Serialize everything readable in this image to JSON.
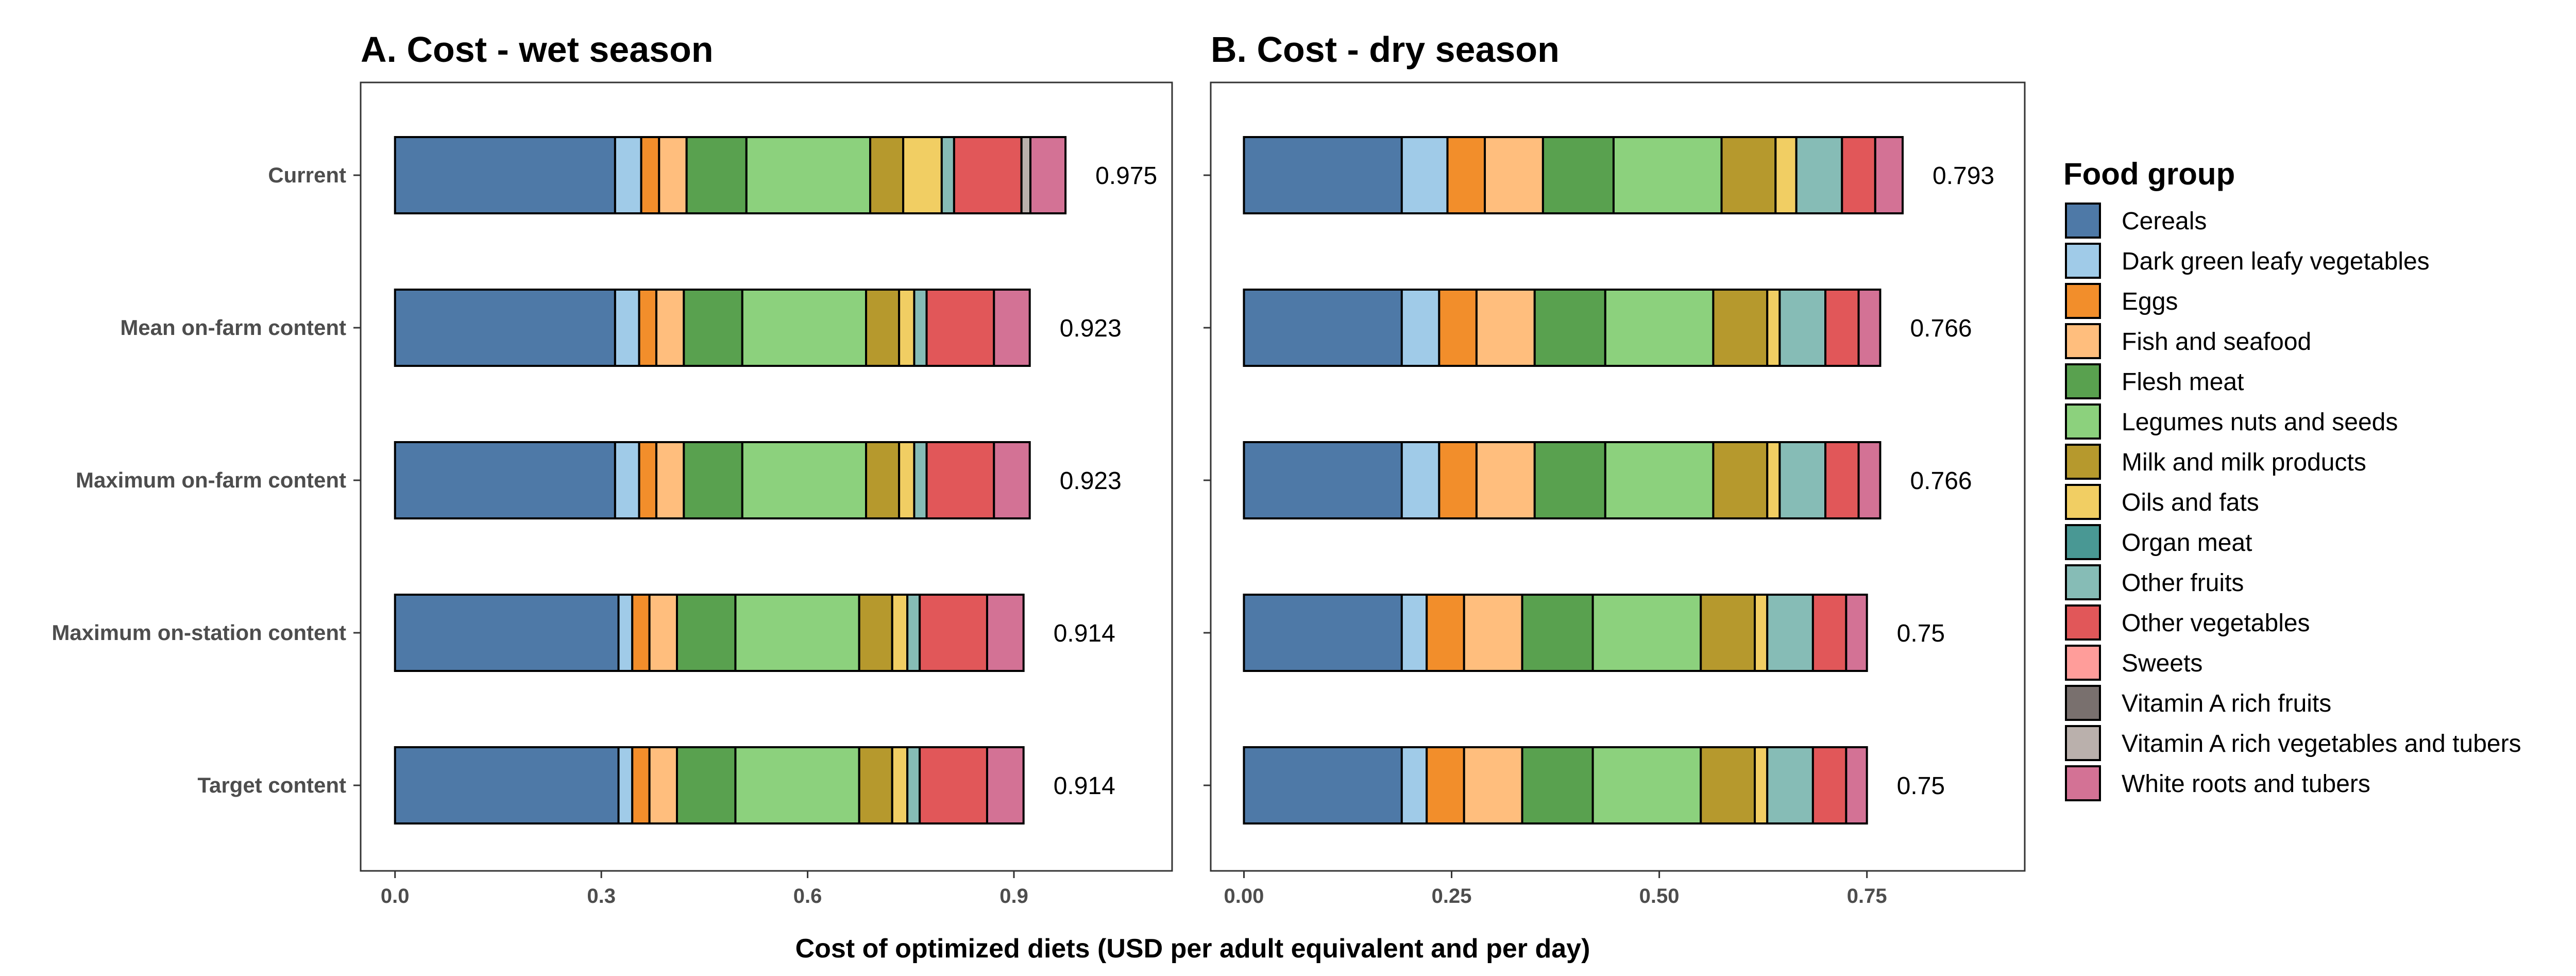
{
  "chart_data": {
    "type": "bar",
    "orientation": "horizontal",
    "stacked": true,
    "xlabel": "Cost of optimized diets (USD per adult equivalent and per day)",
    "legend": {
      "title": "Food group",
      "placement": "right",
      "items": [
        {
          "name": "Cereals",
          "color": "#4e79a7"
        },
        {
          "name": "Dark green leafy vegetables",
          "color": "#a0cbe8"
        },
        {
          "name": "Eggs",
          "color": "#f28e2b"
        },
        {
          "name": "Fish and seafood",
          "color": "#ffbe7d"
        },
        {
          "name": "Flesh meat",
          "color": "#59a14f"
        },
        {
          "name": "Legumes nuts and seeds",
          "color": "#8cd17d"
        },
        {
          "name": "Milk and milk products",
          "color": "#b6992d"
        },
        {
          "name": "Oils and fats",
          "color": "#f1ce63"
        },
        {
          "name": "Organ meat",
          "color": "#499894"
        },
        {
          "name": "Other fruits",
          "color": "#86bcb6"
        },
        {
          "name": "Other vegetables",
          "color": "#e15759"
        },
        {
          "name": "Sweets",
          "color": "#ff9d9a"
        },
        {
          "name": "Vitamin A rich fruits",
          "color": "#79706e"
        },
        {
          "name": "Vitamin A rich vegetables and tubers",
          "color": "#bab0ac"
        },
        {
          "name": "White roots and tubers",
          "color": "#d37295"
        }
      ]
    },
    "categories": [
      "Current",
      "Mean on-farm content",
      "Maximum on-farm content",
      "Maximum on-station content",
      "Target content"
    ],
    "panels": [
      {
        "title": "A. Cost - wet season",
        "xlim": [
          -0.05,
          1.13
        ],
        "ticks": [
          0.0,
          0.3,
          0.6,
          0.9
        ],
        "tick_labels": [
          "0.0",
          "0.3",
          "0.6",
          "0.9"
        ],
        "totals": [
          0.975,
          0.923,
          0.923,
          0.914,
          0.914
        ],
        "total_labels": [
          "0.975",
          "0.923",
          "0.923",
          "0.914",
          "0.914"
        ],
        "segments": [
          [
            0.32,
            0.038,
            0.026,
            0.04,
            0.087,
            0.18,
            0.048,
            0.056,
            0.0,
            0.018,
            0.098,
            0.0,
            0.0,
            0.013,
            0.051
          ],
          [
            0.32,
            0.035,
            0.025,
            0.04,
            0.085,
            0.18,
            0.048,
            0.022,
            0.0,
            0.018,
            0.098,
            0.0,
            0.0,
            0.0,
            0.052
          ],
          [
            0.32,
            0.035,
            0.025,
            0.04,
            0.085,
            0.18,
            0.048,
            0.022,
            0.0,
            0.018,
            0.098,
            0.0,
            0.0,
            0.0,
            0.052
          ],
          [
            0.325,
            0.02,
            0.025,
            0.04,
            0.085,
            0.18,
            0.048,
            0.022,
            0.0,
            0.018,
            0.098,
            0.0,
            0.0,
            0.0,
            0.053
          ],
          [
            0.325,
            0.02,
            0.025,
            0.04,
            0.085,
            0.18,
            0.048,
            0.022,
            0.0,
            0.018,
            0.098,
            0.0,
            0.0,
            0.0,
            0.053
          ]
        ]
      },
      {
        "title": "B. Cost - dry season",
        "xlim": [
          -0.04,
          0.94
        ],
        "ticks": [
          0.0,
          0.25,
          0.5,
          0.75
        ],
        "tick_labels": [
          "0.00",
          "0.25",
          "0.50",
          "0.75"
        ],
        "totals": [
          0.793,
          0.766,
          0.766,
          0.75,
          0.75
        ],
        "total_labels": [
          "0.793",
          "0.766",
          "0.766",
          "0.75",
          "0.75"
        ],
        "segments": [
          [
            0.19,
            0.055,
            0.045,
            0.07,
            0.085,
            0.13,
            0.065,
            0.025,
            0.0,
            0.055,
            0.04,
            0.0,
            0.0,
            0.0,
            0.033
          ],
          [
            0.19,
            0.045,
            0.045,
            0.07,
            0.085,
            0.13,
            0.065,
            0.015,
            0.0,
            0.055,
            0.04,
            0.0,
            0.0,
            0.0,
            0.026
          ],
          [
            0.19,
            0.045,
            0.045,
            0.07,
            0.085,
            0.13,
            0.065,
            0.015,
            0.0,
            0.055,
            0.04,
            0.0,
            0.0,
            0.0,
            0.026
          ],
          [
            0.19,
            0.03,
            0.045,
            0.07,
            0.085,
            0.13,
            0.065,
            0.015,
            0.0,
            0.055,
            0.04,
            0.0,
            0.0,
            0.0,
            0.025
          ],
          [
            0.19,
            0.03,
            0.045,
            0.07,
            0.085,
            0.13,
            0.065,
            0.015,
            0.0,
            0.055,
            0.04,
            0.0,
            0.0,
            0.0,
            0.025
          ]
        ]
      }
    ]
  }
}
